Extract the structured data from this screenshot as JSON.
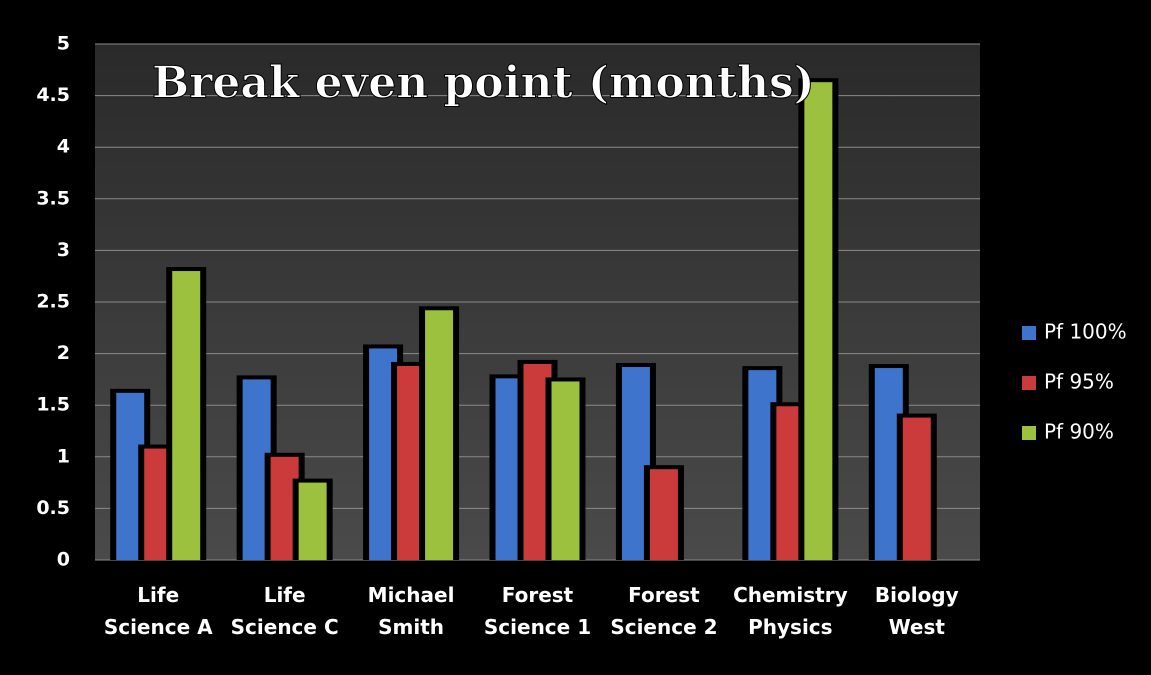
{
  "chart_data": {
    "type": "bar",
    "title": "Break even point (months)",
    "categories": [
      "Life\nScience A",
      "Life\nScience C",
      "Michael\nSmith",
      "Forest\nScience 1",
      "Forest\nScience 2",
      "Chemistry\nPhysics",
      "Biology\nWest"
    ],
    "series": [
      {
        "name": "Pf 100%",
        "color": "#3f74cc",
        "values": [
          1.62,
          1.75,
          2.05,
          1.76,
          1.87,
          1.84,
          1.86
        ]
      },
      {
        "name": "Pf 95%",
        "color": "#cc3b3b",
        "values": [
          1.08,
          1.0,
          1.88,
          1.9,
          0.88,
          1.49,
          1.38
        ]
      },
      {
        "name": "Pf 90%",
        "color": "#9cc13e",
        "values": [
          2.8,
          0.75,
          2.42,
          1.73,
          null,
          4.63,
          null
        ]
      }
    ],
    "ylim": [
      0,
      5
    ],
    "yticks": [
      0,
      0.5,
      1,
      1.5,
      2,
      2.5,
      3,
      3.5,
      4,
      4.5,
      5
    ],
    "grid": true,
    "legend": "right"
  }
}
